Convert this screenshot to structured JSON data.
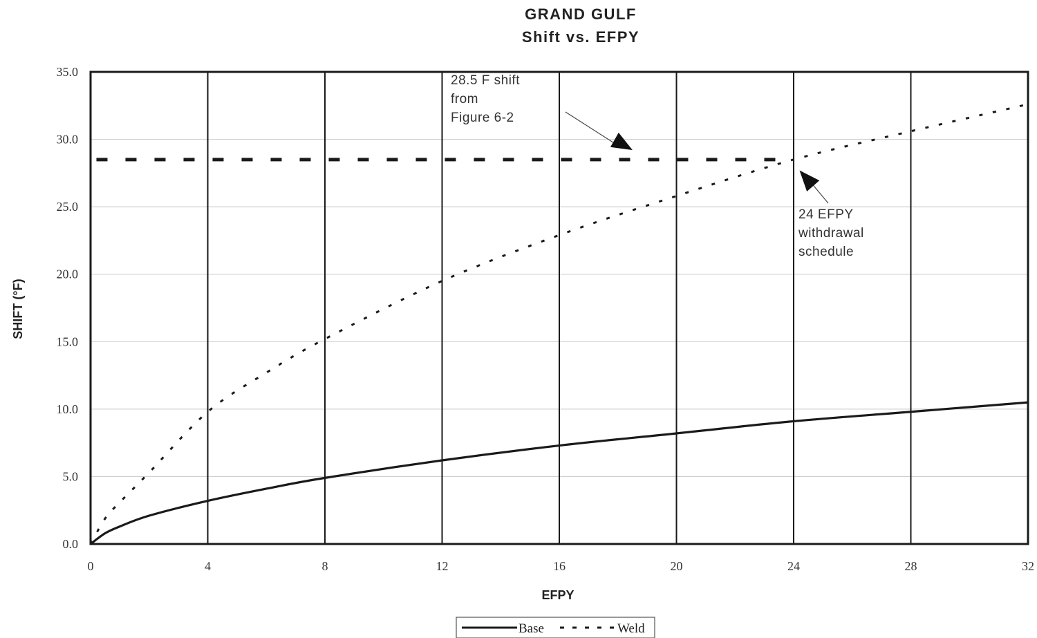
{
  "chart_data": {
    "type": "line",
    "title": "GRAND GULF",
    "subtitle": "Shift vs. EFPY",
    "xlabel": "EFPY",
    "ylabel": "SHIFT (°F)",
    "xlim": [
      0,
      32
    ],
    "ylim": [
      0,
      35
    ],
    "x_ticks": [
      0,
      4,
      8,
      12,
      16,
      20,
      24,
      28,
      32
    ],
    "x_tick_labels": [
      "0",
      "4",
      "8",
      "12",
      "16",
      "20",
      "24",
      "28",
      "32"
    ],
    "y_ticks": [
      0,
      5,
      10,
      15,
      20,
      25,
      30,
      35
    ],
    "y_tick_labels": [
      "0.0",
      "5.0",
      "10.0",
      "15.0",
      "20.0",
      "25.0",
      "30.0",
      "35.0"
    ],
    "grid": {
      "vertical": true,
      "horizontal": true
    },
    "legend": {
      "placement": "bottom-center"
    },
    "series": [
      {
        "name": "Base",
        "style": "solid",
        "color": "#1a1a1a",
        "x": [
          0,
          0.5,
          1,
          2,
          4,
          6,
          8,
          12,
          16,
          20,
          24,
          28,
          32
        ],
        "y": [
          0,
          0.8,
          1.3,
          2.1,
          3.2,
          4.1,
          4.9,
          6.2,
          7.3,
          8.2,
          9.1,
          9.8,
          10.5
        ]
      },
      {
        "name": "Weld",
        "style": "dotted",
        "color": "#1a1a1a",
        "x": [
          0,
          0.5,
          1,
          2,
          4,
          6,
          8,
          12,
          16,
          20,
          24,
          28,
          32
        ],
        "y": [
          0,
          1.9,
          3.1,
          5.3,
          9.8,
          12.7,
          15.2,
          19.5,
          22.9,
          25.8,
          28.5,
          30.6,
          32.6
        ]
      },
      {
        "name": "",
        "style": "dashed",
        "color": "#1a1a1a",
        "x": [
          0.2,
          24
        ],
        "y": [
          28.5,
          28.5
        ]
      }
    ],
    "annotations": [
      {
        "id": "shift-annotation",
        "lines": [
          "28.5 F shift",
          "from",
          "Figure 6-2"
        ],
        "arrow_to": [
          18.5,
          29.2
        ]
      },
      {
        "id": "efpy-annotation",
        "lines": [
          "24 EFPY",
          "withdrawal",
          "schedule"
        ],
        "arrow_to": [
          24.2,
          27.7
        ]
      }
    ]
  }
}
